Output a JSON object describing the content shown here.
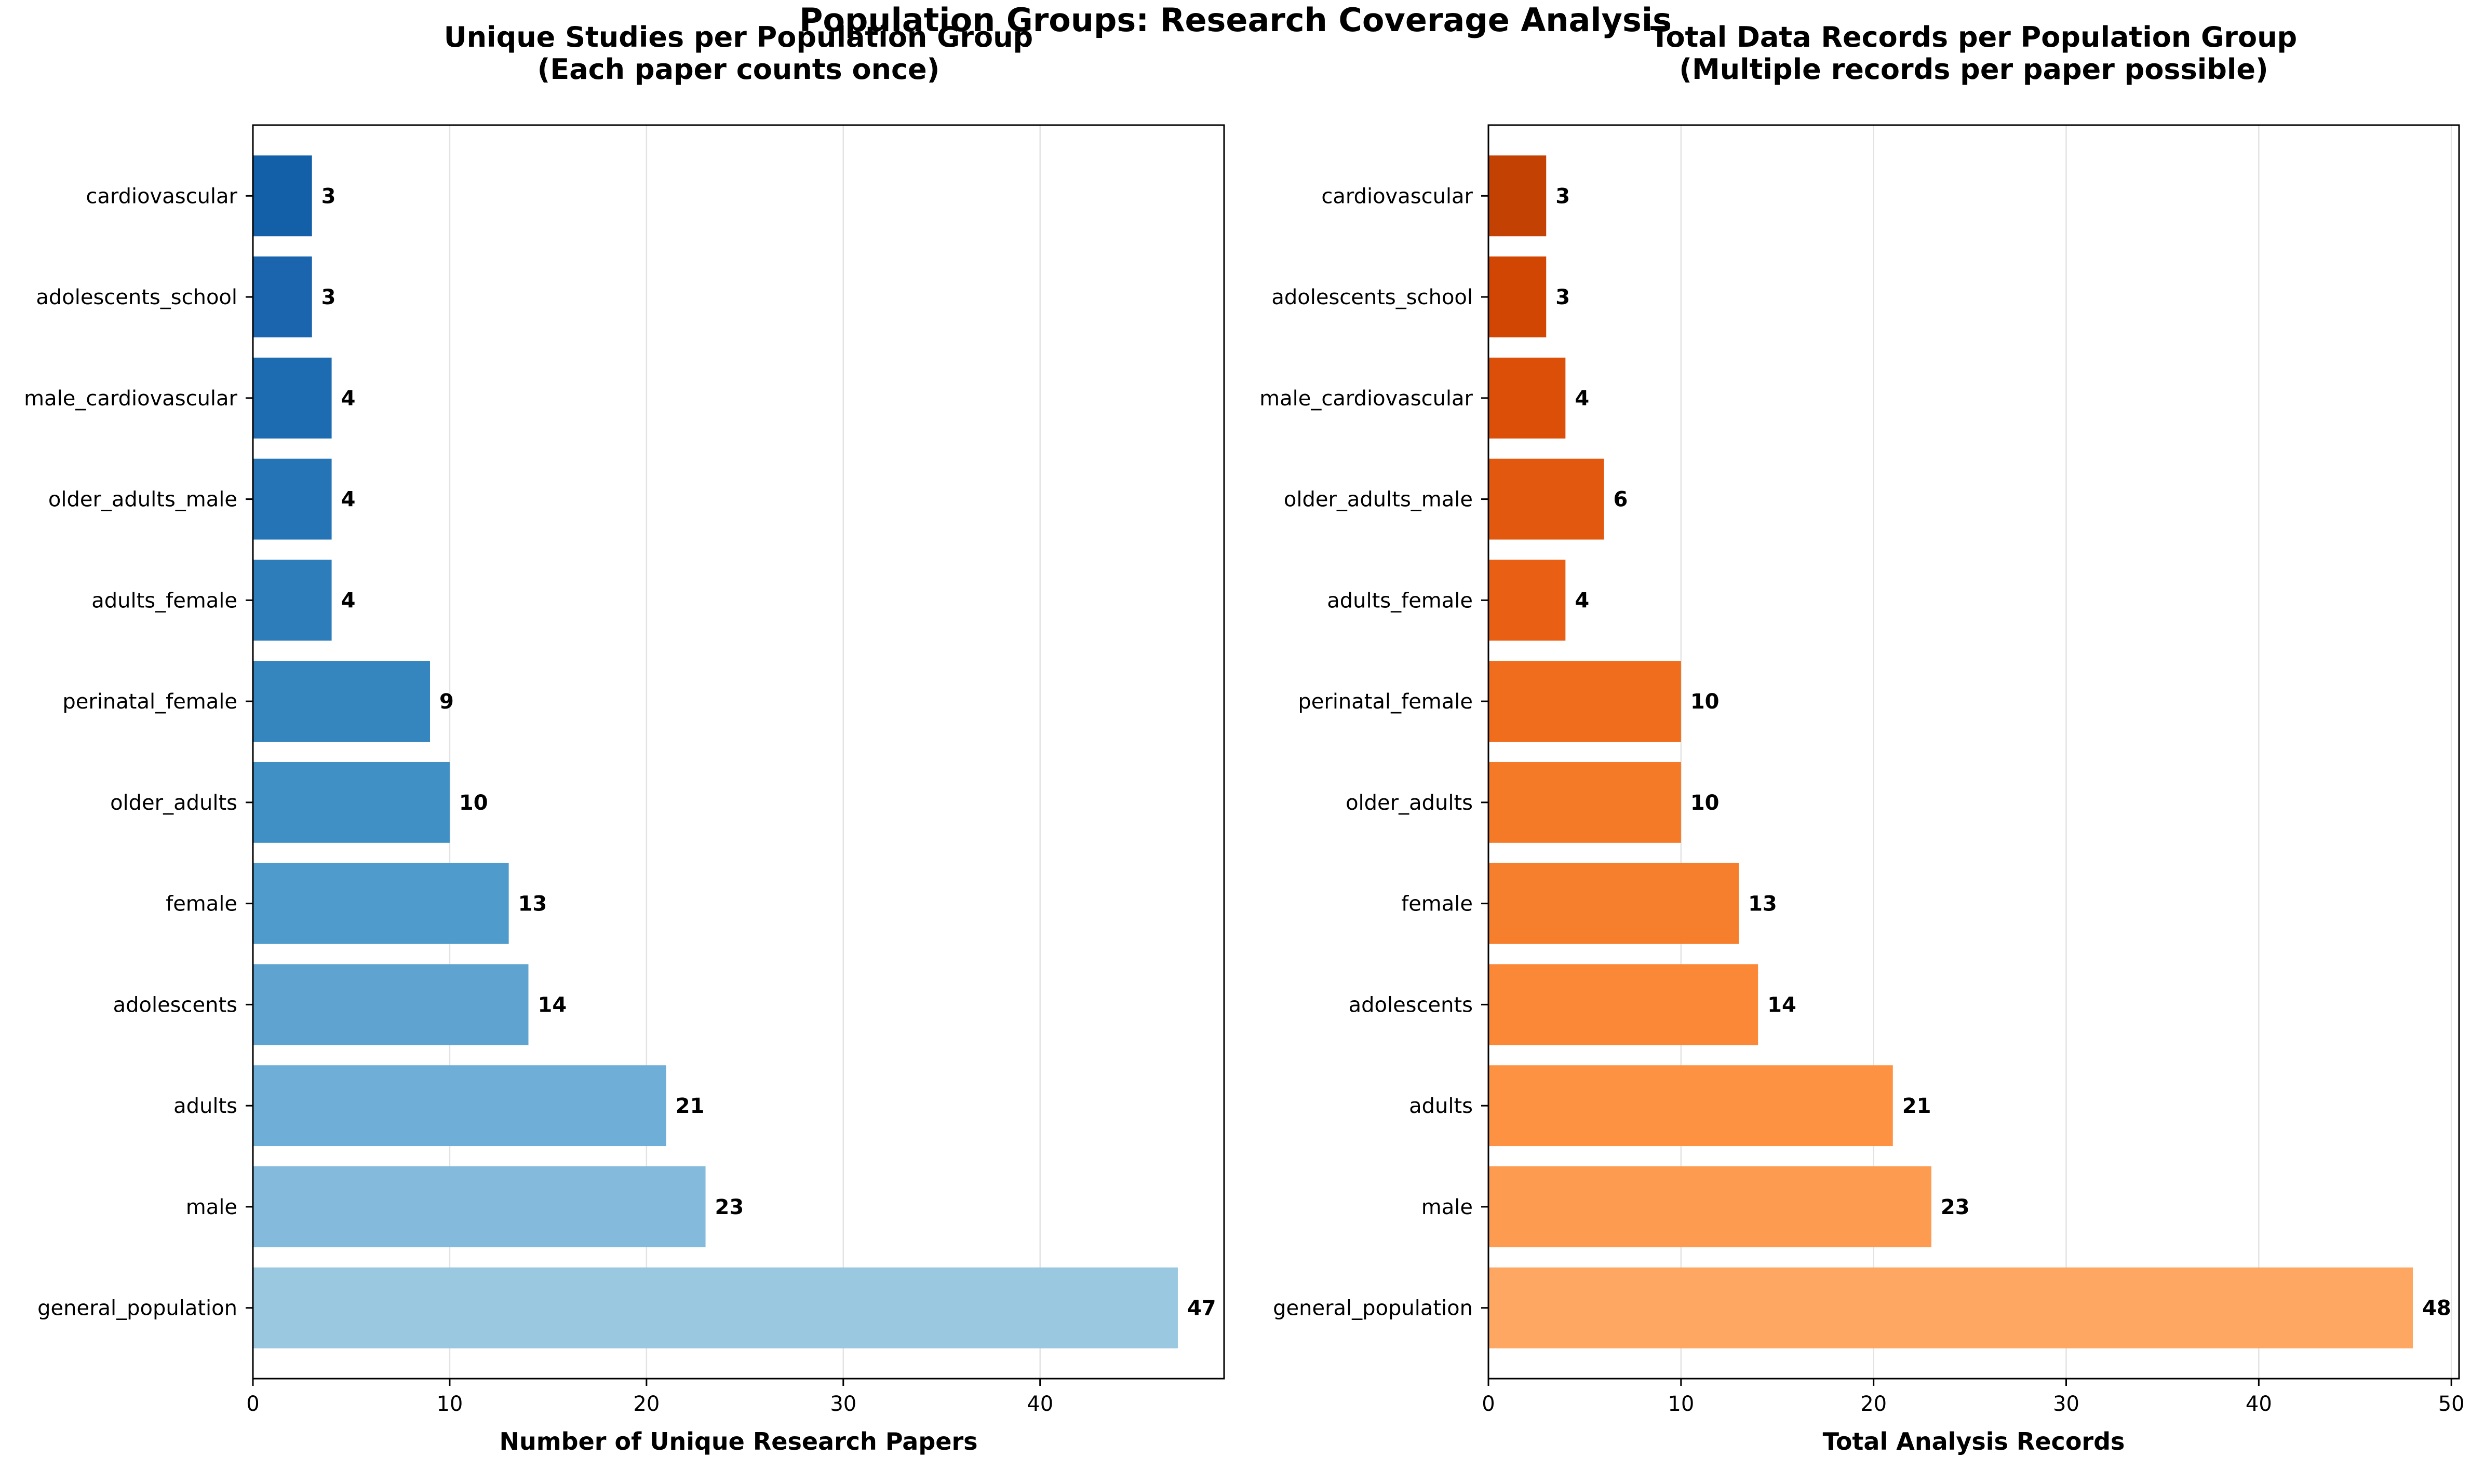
{
  "suptitle": "Population Groups: Research Coverage Analysis",
  "chart_data": [
    {
      "type": "bar",
      "orientation": "horizontal",
      "title": "Unique Studies per Population Group\n(Each paper counts once)",
      "xlabel": "Number of Unique Research Papers",
      "ylabel": "",
      "xlim": [
        0,
        49.35
      ],
      "xticks": [
        0,
        10,
        20,
        30,
        40
      ],
      "grid": "x-axis only",
      "palette": "blues",
      "categories": [
        "general_population",
        "male",
        "adults",
        "adolescents",
        "female",
        "older_adults",
        "perinatal_female",
        "adults_female",
        "older_adults_male",
        "male_cardiovascular",
        "adolescents_school",
        "cardiovascular"
      ],
      "values": [
        47,
        23,
        21,
        14,
        13,
        10,
        9,
        4,
        4,
        4,
        3,
        3
      ],
      "colors": [
        "#9ac8e0",
        "#84badb",
        "#6fafd7",
        "#5fa3d0",
        "#4f9bcb",
        "#4090c5",
        "#3585bf",
        "#2d7dbb",
        "#2474b6",
        "#1d6cb1",
        "#1a65ad",
        "#1460a8"
      ]
    },
    {
      "type": "bar",
      "orientation": "horizontal",
      "title": "Total Data Records per Population Group\n(Multiple records per paper possible)",
      "xlabel": "Total Analysis Records",
      "ylabel": "",
      "xlim": [
        0,
        50.4
      ],
      "xticks": [
        0,
        10,
        20,
        30,
        40,
        50
      ],
      "grid": "x-axis only",
      "palette": "oranges",
      "categories": [
        "general_population",
        "male",
        "adults",
        "adolescents",
        "female",
        "older_adults",
        "perinatal_female",
        "adults_female",
        "older_adults_male",
        "male_cardiovascular",
        "adolescents_school",
        "cardiovascular"
      ],
      "values": [
        48,
        23,
        21,
        14,
        13,
        10,
        10,
        4,
        6,
        4,
        3,
        3
      ],
      "colors": [
        "#fda762",
        "#fd9b51",
        "#fd9243",
        "#fb8836",
        "#f57f2c",
        "#f47a27",
        "#ef6d1c",
        "#e95f13",
        "#e2580e",
        "#db4f08",
        "#d24603",
        "#c34103"
      ]
    }
  ]
}
